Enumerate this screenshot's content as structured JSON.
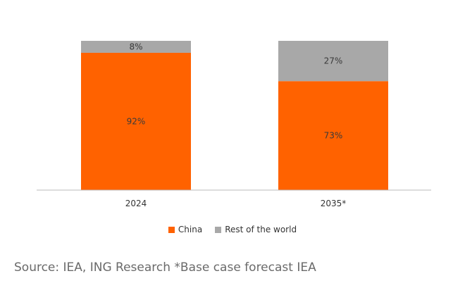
{
  "chart_data": {
    "type": "bar",
    "stacked": true,
    "categories": [
      "2024",
      "2035*"
    ],
    "series": [
      {
        "name": "China",
        "values": [
          92,
          73
        ],
        "labels": [
          "92%",
          "73%"
        ]
      },
      {
        "name": "Rest of the world",
        "values": [
          8,
          27
        ],
        "labels": [
          "8%",
          "27%"
        ]
      }
    ],
    "ylim": [
      0,
      100
    ],
    "grid": false,
    "legend_position": "bottom-center"
  },
  "colors": {
    "China": "#ff6200",
    "Rest of the world": "#a8a8a8",
    "axis": "#bbbbbb"
  },
  "source": "Source: IEA, ING Research *Base case forecast IEA"
}
